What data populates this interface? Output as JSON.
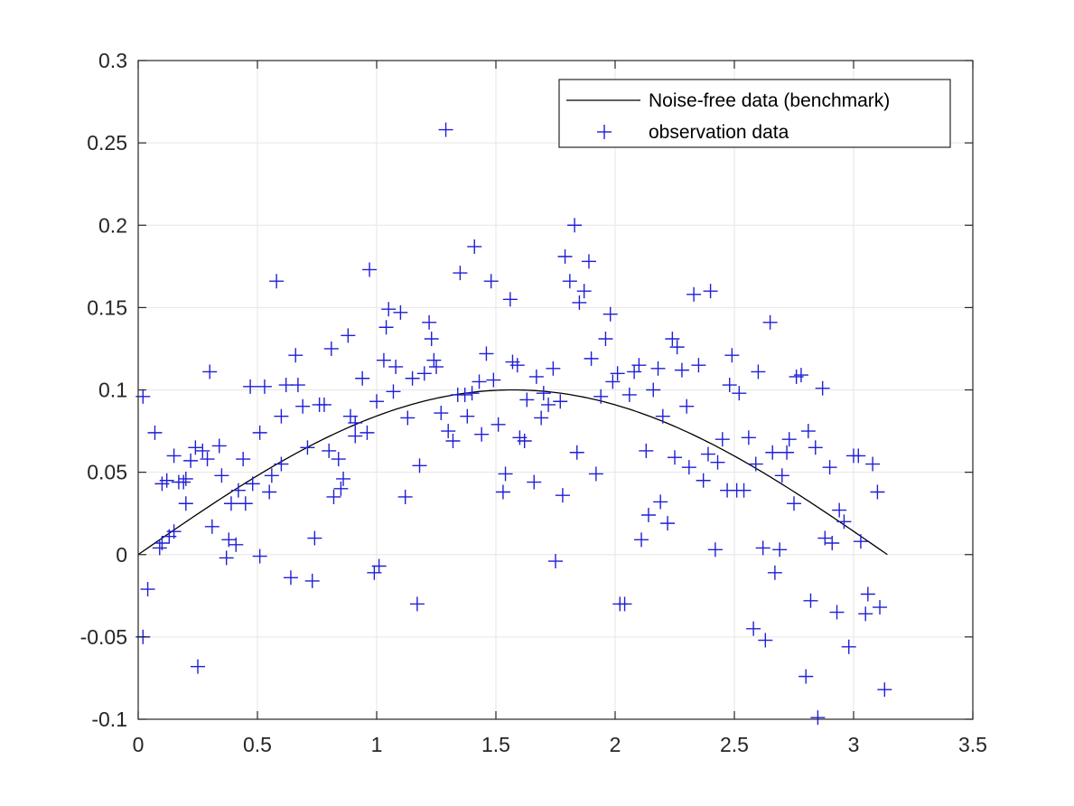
{
  "chart_data": {
    "type": "scatter",
    "title": "",
    "xlabel": "",
    "ylabel": "",
    "xlim": [
      0,
      3.5
    ],
    "ylim": [
      -0.1,
      0.3
    ],
    "x_ticks": [
      0,
      0.5,
      1,
      1.5,
      2,
      2.5,
      3,
      3.5
    ],
    "x_tick_labels": [
      "0",
      "0.5",
      "1",
      "1.5",
      "2",
      "2.5",
      "3",
      "3.5"
    ],
    "y_ticks": [
      -0.1,
      -0.05,
      0,
      0.05,
      0.1,
      0.15,
      0.2,
      0.25,
      0.3
    ],
    "y_tick_labels": [
      "-0.1",
      "-0.05",
      "0",
      "0.05",
      "0.1",
      "0.15",
      "0.2",
      "0.25",
      "0.3"
    ],
    "grid": true,
    "legend_position": "top-right",
    "colors": {
      "benchmark": "#000000",
      "observation": "#1f1fd6",
      "grid": "#e6e6e6",
      "axis": "#262626"
    },
    "series": [
      {
        "name": "Noise-free data (benchmark)",
        "kind": "line",
        "function": "0.1*sin(x)",
        "x_range": [
          0,
          3.1416
        ]
      },
      {
        "name": "observation data",
        "kind": "scatter",
        "marker": "+",
        "points": [
          [
            0.02,
            0.096
          ],
          [
            0.02,
            -0.05
          ],
          [
            0.04,
            -0.021
          ],
          [
            0.07,
            0.074
          ],
          [
            0.09,
            0.004
          ],
          [
            0.1,
            0.007
          ],
          [
            0.1,
            0.043
          ],
          [
            0.12,
            0.045
          ],
          [
            0.13,
            0.011
          ],
          [
            0.15,
            0.014
          ],
          [
            0.15,
            0.06
          ],
          [
            0.17,
            0.044
          ],
          [
            0.19,
            0.044
          ],
          [
            0.2,
            0.046
          ],
          [
            0.2,
            0.031
          ],
          [
            0.22,
            0.057
          ],
          [
            0.24,
            0.065
          ],
          [
            0.25,
            -0.068
          ],
          [
            0.27,
            0.063
          ],
          [
            0.29,
            0.058
          ],
          [
            0.3,
            0.111
          ],
          [
            0.31,
            0.017
          ],
          [
            0.34,
            0.066
          ],
          [
            0.35,
            0.048
          ],
          [
            0.37,
            -0.002
          ],
          [
            0.38,
            0.009
          ],
          [
            0.39,
            0.031
          ],
          [
            0.41,
            0.006
          ],
          [
            0.42,
            0.039
          ],
          [
            0.44,
            0.058
          ],
          [
            0.45,
            0.031
          ],
          [
            0.47,
            0.102
          ],
          [
            0.48,
            0.043
          ],
          [
            0.51,
            0.074
          ],
          [
            0.51,
            -0.001
          ],
          [
            0.53,
            0.102
          ],
          [
            0.55,
            0.038
          ],
          [
            0.56,
            0.048
          ],
          [
            0.58,
            0.166
          ],
          [
            0.6,
            0.084
          ],
          [
            0.6,
            0.055
          ],
          [
            0.62,
            0.103
          ],
          [
            0.64,
            -0.014
          ],
          [
            0.66,
            0.121
          ],
          [
            0.67,
            0.103
          ],
          [
            0.69,
            0.09
          ],
          [
            0.71,
            0.065
          ],
          [
            0.73,
            -0.016
          ],
          [
            0.74,
            0.01
          ],
          [
            0.76,
            0.091
          ],
          [
            0.78,
            0.091
          ],
          [
            0.8,
            0.063
          ],
          [
            0.81,
            0.125
          ],
          [
            0.82,
            0.035
          ],
          [
            0.84,
            0.058
          ],
          [
            0.85,
            0.04
          ],
          [
            0.86,
            0.046
          ],
          [
            0.88,
            0.133
          ],
          [
            0.89,
            0.084
          ],
          [
            0.91,
            0.072
          ],
          [
            0.91,
            0.08
          ],
          [
            0.94,
            0.107
          ],
          [
            0.96,
            0.074
          ],
          [
            0.97,
            0.173
          ],
          [
            0.99,
            -0.011
          ],
          [
            1.0,
            0.093
          ],
          [
            1.01,
            -0.007
          ],
          [
            1.03,
            0.118
          ],
          [
            1.04,
            0.138
          ],
          [
            1.05,
            0.149
          ],
          [
            1.07,
            0.099
          ],
          [
            1.08,
            0.114
          ],
          [
            1.1,
            0.147
          ],
          [
            1.12,
            0.035
          ],
          [
            1.13,
            0.083
          ],
          [
            1.15,
            0.107
          ],
          [
            1.17,
            -0.03
          ],
          [
            1.18,
            0.054
          ],
          [
            1.2,
            0.11
          ],
          [
            1.22,
            0.141
          ],
          [
            1.23,
            0.131
          ],
          [
            1.24,
            0.118
          ],
          [
            1.25,
            0.114
          ],
          [
            1.27,
            0.086
          ],
          [
            1.29,
            0.258
          ],
          [
            1.3,
            0.075
          ],
          [
            1.32,
            0.069
          ],
          [
            1.34,
            0.097
          ],
          [
            1.35,
            0.171
          ],
          [
            1.37,
            0.097
          ],
          [
            1.38,
            0.084
          ],
          [
            1.4,
            0.098
          ],
          [
            1.41,
            0.187
          ],
          [
            1.43,
            0.105
          ],
          [
            1.44,
            0.073
          ],
          [
            1.46,
            0.122
          ],
          [
            1.48,
            0.166
          ],
          [
            1.49,
            0.106
          ],
          [
            1.51,
            0.079
          ],
          [
            1.53,
            0.038
          ],
          [
            1.54,
            0.049
          ],
          [
            1.56,
            0.155
          ],
          [
            1.57,
            0.117
          ],
          [
            1.59,
            0.115
          ],
          [
            1.6,
            0.071
          ],
          [
            1.62,
            0.069
          ],
          [
            1.63,
            0.094
          ],
          [
            1.66,
            0.044
          ],
          [
            1.67,
            0.108
          ],
          [
            1.69,
            0.083
          ],
          [
            1.7,
            0.098
          ],
          [
            1.72,
            0.091
          ],
          [
            1.74,
            0.113
          ],
          [
            1.75,
            -0.004
          ],
          [
            1.77,
            0.093
          ],
          [
            1.78,
            0.036
          ],
          [
            1.79,
            0.181
          ],
          [
            1.81,
            0.166
          ],
          [
            1.83,
            0.2
          ],
          [
            1.84,
            0.062
          ],
          [
            1.85,
            0.153
          ],
          [
            1.87,
            0.16
          ],
          [
            1.89,
            0.178
          ],
          [
            1.9,
            0.119
          ],
          [
            1.92,
            0.049
          ],
          [
            1.94,
            0.096
          ],
          [
            1.96,
            0.131
          ],
          [
            1.98,
            0.146
          ],
          [
            1.99,
            0.105
          ],
          [
            2.01,
            0.11
          ],
          [
            2.02,
            -0.03
          ],
          [
            2.04,
            -0.03
          ],
          [
            2.06,
            0.097
          ],
          [
            2.08,
            0.111
          ],
          [
            2.1,
            0.115
          ],
          [
            2.11,
            0.009
          ],
          [
            2.13,
            0.063
          ],
          [
            2.14,
            0.024
          ],
          [
            2.16,
            0.1
          ],
          [
            2.18,
            0.113
          ],
          [
            2.19,
            0.032
          ],
          [
            2.2,
            0.084
          ],
          [
            2.22,
            0.019
          ],
          [
            2.24,
            0.131
          ],
          [
            2.25,
            0.059
          ],
          [
            2.26,
            0.126
          ],
          [
            2.28,
            0.112
          ],
          [
            2.3,
            0.09
          ],
          [
            2.31,
            0.053
          ],
          [
            2.33,
            0.158
          ],
          [
            2.35,
            0.115
          ],
          [
            2.37,
            0.045
          ],
          [
            2.39,
            0.061
          ],
          [
            2.4,
            0.16
          ],
          [
            2.42,
            0.003
          ],
          [
            2.43,
            0.056
          ],
          [
            2.45,
            0.07
          ],
          [
            2.47,
            0.039
          ],
          [
            2.48,
            0.103
          ],
          [
            2.49,
            0.121
          ],
          [
            2.51,
            0.039
          ],
          [
            2.52,
            0.098
          ],
          [
            2.54,
            0.039
          ],
          [
            2.56,
            0.071
          ],
          [
            2.58,
            -0.045
          ],
          [
            2.59,
            0.055
          ],
          [
            2.6,
            0.111
          ],
          [
            2.62,
            0.004
          ],
          [
            2.63,
            -0.052
          ],
          [
            2.65,
            0.141
          ],
          [
            2.66,
            0.062
          ],
          [
            2.67,
            -0.011
          ],
          [
            2.69,
            0.003
          ],
          [
            2.7,
            0.048
          ],
          [
            2.72,
            0.062
          ],
          [
            2.73,
            0.07
          ],
          [
            2.75,
            0.031
          ],
          [
            2.76,
            0.108
          ],
          [
            2.78,
            0.109
          ],
          [
            2.8,
            -0.074
          ],
          [
            2.81,
            0.075
          ],
          [
            2.82,
            -0.028
          ],
          [
            2.84,
            0.065
          ],
          [
            2.85,
            -0.099
          ],
          [
            2.87,
            0.101
          ],
          [
            2.88,
            0.01
          ],
          [
            2.9,
            0.053
          ],
          [
            2.91,
            0.007
          ],
          [
            2.93,
            -0.035
          ],
          [
            2.94,
            0.027
          ],
          [
            2.96,
            0.02
          ],
          [
            2.98,
            -0.056
          ],
          [
            3.0,
            0.06
          ],
          [
            3.02,
            0.06
          ],
          [
            3.03,
            0.008
          ],
          [
            3.05,
            -0.036
          ],
          [
            3.06,
            -0.024
          ],
          [
            3.08,
            0.055
          ],
          [
            3.1,
            0.038
          ],
          [
            3.11,
            -0.032
          ],
          [
            3.13,
            -0.082
          ]
        ]
      }
    ]
  }
}
